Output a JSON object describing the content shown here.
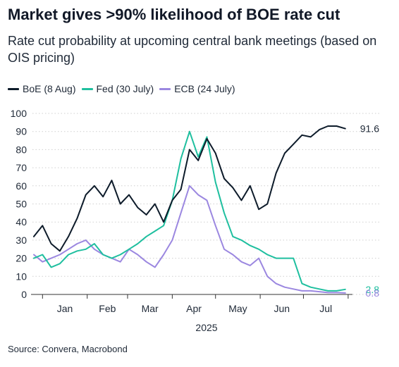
{
  "title": "Market gives >90% likelihood of BOE rate cut",
  "subtitle": "Rate cut probability at upcoming central bank meetings (based on OIS pricing)",
  "source": "Source: Convera, Macrobond",
  "colors": {
    "boe": "#0d1b2a",
    "fed": "#1fbf9f",
    "ecb": "#9b87e0",
    "grid": "#cfcfcf"
  },
  "chart_data": {
    "type": "line",
    "title": "Market gives >90% likelihood of BOE rate cut",
    "subtitle": "Rate cut probability at upcoming central bank meetings (based on OIS pricing)",
    "xlabel": "2025",
    "ylabel": "",
    "ylim": [
      0,
      100
    ],
    "yticks": [
      "0",
      "10",
      "20",
      "30",
      "40",
      "50",
      "60",
      "70",
      "80",
      "90",
      "100"
    ],
    "x_tick_labels": [
      "Jan",
      "Feb",
      "Mar",
      "Apr",
      "May",
      "Jun",
      "Jul"
    ],
    "x_axis_year": "2025",
    "grid": true,
    "legend_position": "top-left",
    "x": [
      "2024-12-26",
      "2025-01-01",
      "2025-01-07",
      "2025-01-13",
      "2025-01-19",
      "2025-01-25",
      "2025-01-31",
      "2025-02-06",
      "2025-02-12",
      "2025-02-18",
      "2025-02-24",
      "2025-03-02",
      "2025-03-08",
      "2025-03-14",
      "2025-03-20",
      "2025-03-26",
      "2025-04-01",
      "2025-04-07",
      "2025-04-13",
      "2025-04-19",
      "2025-04-25",
      "2025-05-01",
      "2025-05-07",
      "2025-05-13",
      "2025-05-19",
      "2025-05-25",
      "2025-05-31",
      "2025-06-06",
      "2025-06-12",
      "2025-06-18",
      "2025-06-24",
      "2025-06-30",
      "2025-07-06",
      "2025-07-12",
      "2025-07-18",
      "2025-07-24",
      "2025-07-30"
    ],
    "series": [
      {
        "name": "BoE (8 Aug)",
        "color": "#0d1b2a",
        "last_label": "91.6",
        "values": [
          32,
          38,
          28,
          24,
          32,
          42,
          55,
          60,
          54,
          63,
          50,
          55,
          48,
          44,
          50,
          40,
          52,
          58,
          80,
          74,
          86,
          78,
          64,
          59,
          52,
          60,
          47,
          50,
          67,
          78,
          83,
          88,
          87,
          91,
          93,
          93,
          91.6
        ]
      },
      {
        "name": "Fed (30 July)",
        "color": "#1fbf9f",
        "last_label": "2.8",
        "values": [
          20,
          22,
          15,
          17,
          22,
          24,
          25,
          28,
          22,
          20,
          22,
          25,
          28,
          32,
          35,
          38,
          52,
          75,
          90,
          76,
          87,
          62,
          45,
          32,
          30,
          27,
          25,
          22,
          20,
          20,
          20,
          6,
          4,
          3,
          2,
          2,
          2.8
        ]
      },
      {
        "name": "ECB (24 July)",
        "color": "#9b87e0",
        "last_label": "0.8",
        "values": [
          22,
          18,
          20,
          22,
          25,
          28,
          30,
          25,
          22,
          20,
          18,
          25,
          22,
          18,
          15,
          22,
          30,
          45,
          60,
          55,
          52,
          38,
          25,
          22,
          18,
          16,
          20,
          10,
          6,
          4,
          3,
          2,
          2,
          1.5,
          1,
          1,
          0.8
        ]
      }
    ]
  }
}
